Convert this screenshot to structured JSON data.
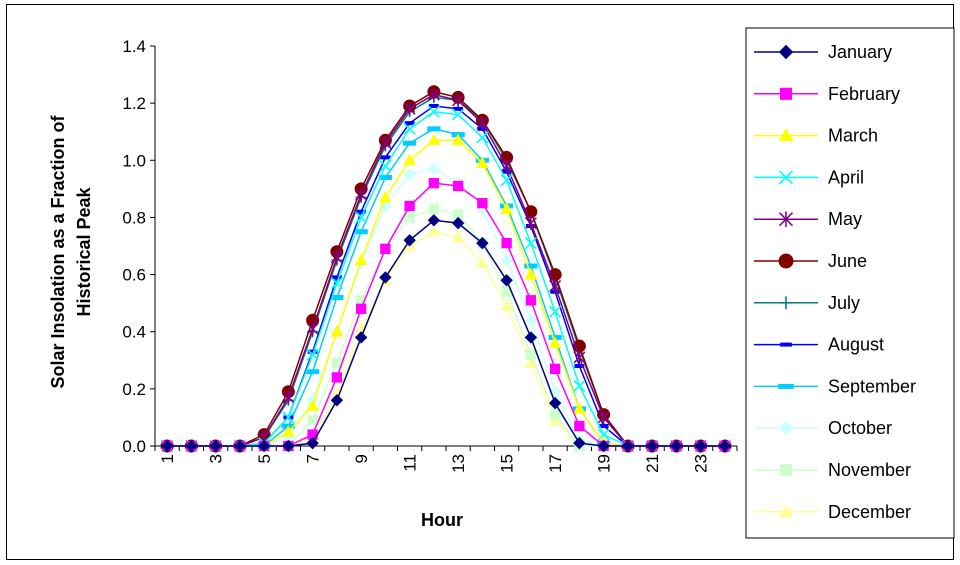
{
  "chart_data": {
    "type": "line",
    "title": "",
    "xlabel": "Hour",
    "ylabel_lines": [
      "Solar Insolation as a Fraction of",
      "Historical Peak"
    ],
    "ylim": [
      0,
      1.4
    ],
    "y_ticks": [
      "0.0",
      "0.2",
      "0.4",
      "0.6",
      "0.8",
      "1.0",
      "1.2",
      "1.4"
    ],
    "x": [
      1,
      2,
      3,
      4,
      5,
      6,
      7,
      8,
      9,
      10,
      11,
      12,
      13,
      14,
      15,
      16,
      17,
      18,
      19,
      20,
      21,
      22,
      23,
      24
    ],
    "x_tick_labels": [
      "1",
      "3",
      "5",
      "7",
      "9",
      "11",
      "13",
      "15",
      "17",
      "19",
      "21",
      "23"
    ],
    "grid": false,
    "legend_position": "right",
    "series": [
      {
        "name": "January",
        "color": "#000080",
        "marker": "diamond",
        "values": [
          0,
          0,
          0,
          0,
          0,
          0,
          0.01,
          0.16,
          0.38,
          0.59,
          0.72,
          0.79,
          0.78,
          0.71,
          0.58,
          0.38,
          0.15,
          0.01,
          0,
          0,
          0,
          0,
          0,
          0
        ]
      },
      {
        "name": "February",
        "color": "#FF00FF",
        "marker": "square",
        "values": [
          0,
          0,
          0,
          0,
          0,
          0,
          0.04,
          0.24,
          0.48,
          0.69,
          0.84,
          0.92,
          0.91,
          0.85,
          0.71,
          0.51,
          0.27,
          0.07,
          0,
          0,
          0,
          0,
          0,
          0
        ]
      },
      {
        "name": "March",
        "color": "#FFFF00",
        "marker": "triangle",
        "values": [
          0,
          0,
          0,
          0,
          0,
          0.05,
          0.14,
          0.4,
          0.65,
          0.87,
          1.0,
          1.07,
          1.07,
          0.99,
          0.83,
          0.6,
          0.36,
          0.13,
          0.01,
          0,
          0,
          0,
          0,
          0
        ]
      },
      {
        "name": "April",
        "color": "#00FFFF",
        "marker": "x",
        "values": [
          0,
          0,
          0,
          0,
          0.01,
          0.1,
          0.32,
          0.57,
          0.8,
          0.98,
          1.11,
          1.17,
          1.16,
          1.08,
          0.93,
          0.71,
          0.47,
          0.21,
          0.04,
          0,
          0,
          0,
          0,
          0
        ]
      },
      {
        "name": "May",
        "color": "#800080",
        "marker": "star",
        "values": [
          0,
          0,
          0,
          0,
          0.03,
          0.17,
          0.41,
          0.66,
          0.88,
          1.06,
          1.18,
          1.23,
          1.21,
          1.13,
          0.98,
          0.78,
          0.56,
          0.31,
          0.1,
          0,
          0,
          0,
          0,
          0
        ]
      },
      {
        "name": "June",
        "color": "#800000",
        "marker": "circle",
        "values": [
          0,
          0,
          0,
          0,
          0.04,
          0.19,
          0.44,
          0.68,
          0.9,
          1.07,
          1.19,
          1.24,
          1.22,
          1.14,
          1.01,
          0.82,
          0.6,
          0.35,
          0.11,
          0,
          0,
          0,
          0,
          0
        ]
      },
      {
        "name": "July",
        "color": "#008080",
        "marker": "plus",
        "values": [
          0,
          0,
          0,
          0,
          0.03,
          0.16,
          0.4,
          0.65,
          0.87,
          1.05,
          1.17,
          1.22,
          1.21,
          1.14,
          1.0,
          0.82,
          0.59,
          0.34,
          0.11,
          0,
          0,
          0,
          0,
          0
        ]
      },
      {
        "name": "August",
        "color": "#0000FF",
        "marker": "dash",
        "values": [
          0,
          0,
          0,
          0,
          0.01,
          0.1,
          0.33,
          0.59,
          0.82,
          1.01,
          1.13,
          1.19,
          1.18,
          1.11,
          0.96,
          0.77,
          0.54,
          0.28,
          0.07,
          0,
          0,
          0,
          0,
          0
        ]
      },
      {
        "name": "September",
        "color": "#00CCFF",
        "marker": "dash-wide",
        "values": [
          0,
          0,
          0,
          0,
          0,
          0.07,
          0.26,
          0.52,
          0.75,
          0.94,
          1.06,
          1.11,
          1.09,
          1.0,
          0.84,
          0.63,
          0.38,
          0.13,
          0.01,
          0,
          0,
          0,
          0,
          0
        ]
      },
      {
        "name": "October",
        "color": "#CCFFFF",
        "marker": "diamond",
        "values": [
          0,
          0,
          0,
          0,
          0,
          0.03,
          0.16,
          0.4,
          0.64,
          0.84,
          0.95,
          0.97,
          0.92,
          0.83,
          0.65,
          0.44,
          0.19,
          0.02,
          0,
          0,
          0,
          0,
          0,
          0
        ]
      },
      {
        "name": "November",
        "color": "#CCFFCC",
        "marker": "square",
        "values": [
          0,
          0,
          0,
          0,
          0,
          0,
          0.09,
          0.29,
          0.51,
          0.69,
          0.8,
          0.83,
          0.81,
          0.71,
          0.54,
          0.32,
          0.11,
          0,
          0,
          0,
          0,
          0,
          0,
          0
        ]
      },
      {
        "name": "December",
        "color": "#FFFF99",
        "marker": "triangle",
        "values": [
          0,
          0,
          0,
          0,
          0,
          0,
          0.03,
          0.18,
          0.41,
          0.58,
          0.7,
          0.75,
          0.73,
          0.64,
          0.49,
          0.29,
          0.09,
          0,
          0,
          0,
          0,
          0,
          0,
          0
        ]
      }
    ]
  }
}
